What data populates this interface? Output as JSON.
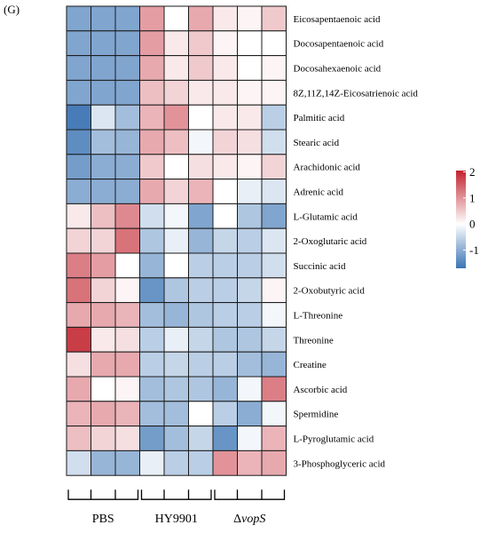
{
  "panel_label": "(G)",
  "chart_data": {
    "type": "heatmap",
    "rows": [
      "Eicosapentaenoic acid",
      "Docosapentaenoic acid",
      "Docosahexaenoic acid",
      "8Z,11Z,14Z-Eicosatrienoic acid",
      "Palmitic acid",
      "Stearic acid",
      "Arachidonic acid",
      "Adrenic acid",
      "L-Glutamic acid",
      "2-Oxoglutaric acid",
      "Succinic acid",
      "2-Oxobutyric acid",
      "L-Threonine",
      "Threonine",
      "Creatine",
      "Ascorbic acid",
      "Spermidine",
      "L-Pyroglutamic acid",
      "3-Phosphoglyceric acid"
    ],
    "groups": [
      {
        "label": "PBS",
        "columns": 3
      },
      {
        "label": "HY9901",
        "columns": 3
      },
      {
        "label": "ΔvopS",
        "prefix": "Δ",
        "italic": "vopS",
        "columns": 3
      }
    ],
    "values": [
      [
        -1.1,
        -1.1,
        -1.1,
        0.9,
        0.0,
        0.8,
        0.2,
        0.1,
        0.5
      ],
      [
        -1.1,
        -1.1,
        -1.1,
        0.9,
        0.2,
        0.5,
        0.1,
        0.0,
        0.0
      ],
      [
        -1.1,
        -1.1,
        -1.1,
        0.8,
        0.2,
        0.5,
        0.2,
        0.0,
        0.1
      ],
      [
        -1.1,
        -1.1,
        -1.1,
        0.6,
        0.4,
        0.2,
        0.2,
        0.1,
        0.1
      ],
      [
        -1.6,
        -0.3,
        -0.8,
        0.7,
        1.0,
        0.0,
        0.2,
        0.2,
        -0.6
      ],
      [
        -1.4,
        -0.8,
        -0.9,
        0.8,
        0.6,
        -0.1,
        0.4,
        0.3,
        -0.4
      ],
      [
        -1.2,
        -1.0,
        -1.0,
        0.5,
        0.0,
        0.3,
        0.2,
        0.1,
        0.4
      ],
      [
        -1.0,
        -1.0,
        -1.0,
        0.8,
        0.4,
        0.7,
        0.0,
        -0.2,
        -0.3
      ],
      [
        0.2,
        0.6,
        1.1,
        -0.4,
        -0.1,
        -1.1,
        0.0,
        -0.7,
        -1.1
      ],
      [
        0.4,
        0.4,
        1.3,
        -0.7,
        -0.2,
        -0.9,
        -0.5,
        -0.6,
        -0.3
      ],
      [
        1.2,
        0.9,
        0.0,
        -0.9,
        0.0,
        -0.6,
        -0.6,
        -0.6,
        -0.4
      ],
      [
        1.3,
        0.4,
        0.1,
        -1.3,
        -0.7,
        -0.6,
        -0.6,
        -0.5,
        0.1
      ],
      [
        0.8,
        0.8,
        0.7,
        -0.8,
        -0.9,
        -0.7,
        -0.6,
        -0.6,
        -0.1
      ],
      [
        1.8,
        0.2,
        0.3,
        -0.6,
        -0.2,
        -0.5,
        -0.7,
        -0.7,
        -0.5
      ],
      [
        0.3,
        0.8,
        0.8,
        -0.6,
        -0.5,
        -0.6,
        -0.6,
        -0.8,
        -0.9
      ],
      [
        0.8,
        0.0,
        0.1,
        -0.8,
        -0.7,
        -0.7,
        -0.9,
        -0.1,
        1.2
      ],
      [
        0.7,
        0.8,
        0.7,
        -0.8,
        -0.8,
        0.0,
        -0.6,
        -1.0,
        -0.1
      ],
      [
        0.6,
        0.4,
        0.3,
        -1.2,
        -0.8,
        -0.5,
        -1.3,
        -0.1,
        0.7
      ],
      [
        -0.4,
        -0.9,
        -0.9,
        -0.2,
        -0.6,
        -0.6,
        1.0,
        0.7,
        0.8
      ]
    ],
    "colorbar": {
      "ticks": [
        2,
        1,
        0,
        -1
      ],
      "tick_labels": [
        "2",
        "1",
        "0",
        "-1"
      ],
      "range": [
        -1.7,
        2.05
      ],
      "colors": {
        "high": "#c2222e",
        "mid": "#ffffff",
        "low": "#3b74b4"
      }
    }
  }
}
